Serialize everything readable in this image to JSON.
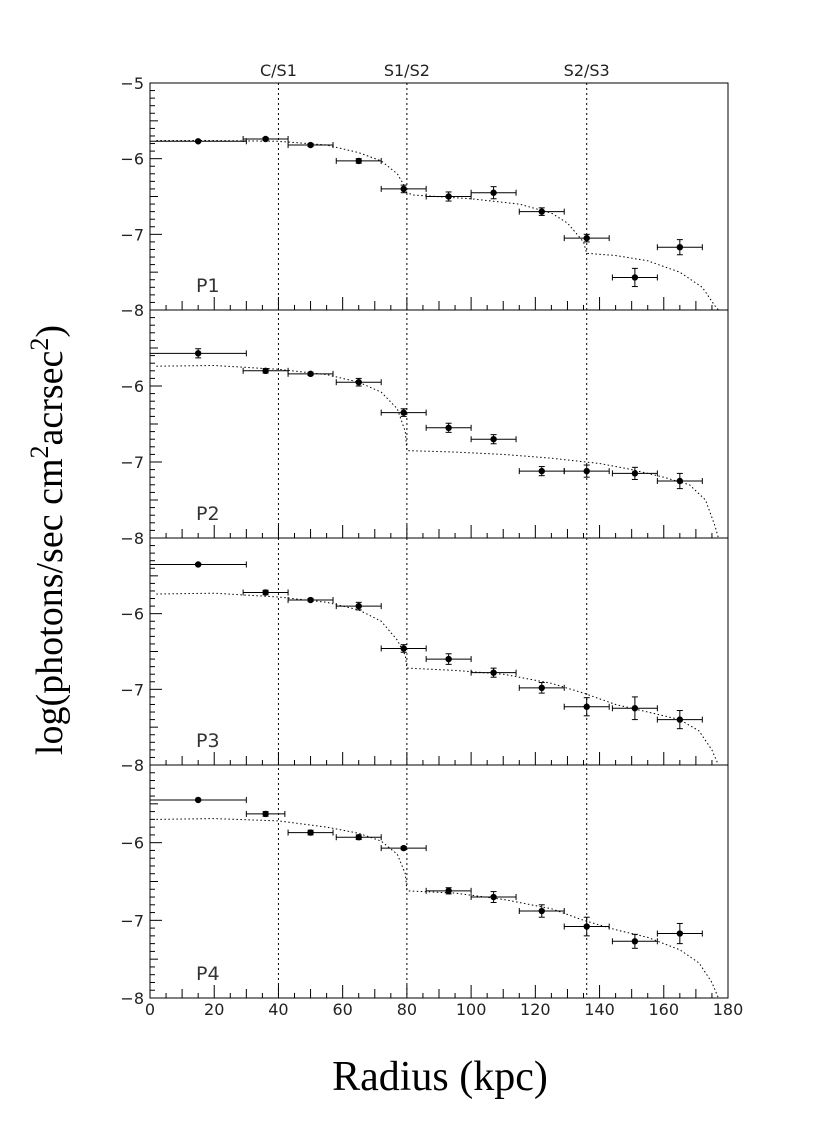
{
  "chart_data": {
    "type": "scatter",
    "xlabel": "Radius (kpc)",
    "ylabel_main": "log(photons/sec cm",
    "ylabel_sup1": "2",
    "ylabel_mid": "acrsec",
    "ylabel_sup2": "2",
    "ylabel_end": ")",
    "xlim": [
      0,
      180
    ],
    "x_ticks": [
      "0",
      "20",
      "40",
      "60",
      "80",
      "100",
      "120",
      "140",
      "160",
      "180"
    ],
    "ylim": [
      -8,
      -5
    ],
    "y_ticks_top_panel": [
      "-5",
      "-6",
      "-7",
      "-8"
    ],
    "y_ticks_other_panels": [
      "-6",
      "-7",
      "-8"
    ],
    "dividers": [
      {
        "x": 40,
        "label": "C/S1"
      },
      {
        "x": 80,
        "label": "S1/S2"
      },
      {
        "x": 136,
        "label": "S2/S3"
      }
    ],
    "panels": [
      {
        "label": "P1",
        "ylim": [
          -8,
          -5
        ],
        "points": [
          {
            "x": 15,
            "y": -5.77,
            "xerr": 15,
            "yerr": 0.01
          },
          {
            "x": 36,
            "y": -5.74,
            "xerr": 7,
            "yerr": 0.02
          },
          {
            "x": 50,
            "y": -5.82,
            "xerr": 7,
            "yerr": 0.02
          },
          {
            "x": 65,
            "y": -6.03,
            "xerr": 7,
            "yerr": 0.03
          },
          {
            "x": 79,
            "y": -6.4,
            "xerr": 7,
            "yerr": 0.05
          },
          {
            "x": 93,
            "y": -6.5,
            "xerr": 7,
            "yerr": 0.06
          },
          {
            "x": 107,
            "y": -6.45,
            "xerr": 7,
            "yerr": 0.08
          },
          {
            "x": 122,
            "y": -6.7,
            "xerr": 7,
            "yerr": 0.05
          },
          {
            "x": 136,
            "y": -7.05,
            "xerr": 7,
            "yerr": 0.05
          },
          {
            "x": 151,
            "y": -7.57,
            "xerr": 7,
            "yerr": 0.12
          },
          {
            "x": 165,
            "y": -7.17,
            "xerr": 7,
            "yerr": 0.1
          }
        ],
        "model": [
          [
            2,
            -5.76
          ],
          [
            20,
            -5.76
          ],
          [
            40,
            -5.77
          ],
          [
            55,
            -5.82
          ],
          [
            65,
            -5.92
          ],
          [
            72,
            -6.03
          ],
          [
            77,
            -6.2
          ],
          [
            79.5,
            -6.38
          ],
          [
            80,
            -6.45
          ],
          [
            82,
            -6.48
          ],
          [
            100,
            -6.53
          ],
          [
            115,
            -6.6
          ],
          [
            125,
            -6.72
          ],
          [
            130,
            -6.85
          ],
          [
            135,
            -7.1
          ],
          [
            136,
            -7.25
          ],
          [
            145,
            -7.28
          ],
          [
            155,
            -7.35
          ],
          [
            165,
            -7.5
          ],
          [
            172,
            -7.7
          ],
          [
            176,
            -7.95
          ],
          [
            177,
            -8.0
          ]
        ]
      },
      {
        "label": "P2",
        "ylim": [
          -8,
          -5
        ],
        "points": [
          {
            "x": 15,
            "y": -5.57,
            "xerr": 15,
            "yerr": 0.06
          },
          {
            "x": 36,
            "y": -5.8,
            "xerr": 7,
            "yerr": 0.03
          },
          {
            "x": 50,
            "y": -5.84,
            "xerr": 7,
            "yerr": 0.02
          },
          {
            "x": 65,
            "y": -5.95,
            "xerr": 7,
            "yerr": 0.05
          },
          {
            "x": 79,
            "y": -6.35,
            "xerr": 7,
            "yerr": 0.05
          },
          {
            "x": 93,
            "y": -6.55,
            "xerr": 7,
            "yerr": 0.06
          },
          {
            "x": 107,
            "y": -6.7,
            "xerr": 7,
            "yerr": 0.06
          },
          {
            "x": 122,
            "y": -7.12,
            "xerr": 7,
            "yerr": 0.06
          },
          {
            "x": 136,
            "y": -7.12,
            "xerr": 7,
            "yerr": 0.08
          },
          {
            "x": 151,
            "y": -7.15,
            "xerr": 7,
            "yerr": 0.08
          },
          {
            "x": 165,
            "y": -7.25,
            "xerr": 7,
            "yerr": 0.1
          }
        ],
        "model": [
          [
            2,
            -5.74
          ],
          [
            20,
            -5.73
          ],
          [
            40,
            -5.78
          ],
          [
            55,
            -5.85
          ],
          [
            65,
            -5.95
          ],
          [
            72,
            -6.08
          ],
          [
            77,
            -6.3
          ],
          [
            79.5,
            -6.6
          ],
          [
            80,
            -6.85
          ],
          [
            95,
            -6.87
          ],
          [
            110,
            -6.9
          ],
          [
            125,
            -6.95
          ],
          [
            140,
            -7.02
          ],
          [
            150,
            -7.1
          ],
          [
            160,
            -7.2
          ],
          [
            168,
            -7.3
          ],
          [
            173,
            -7.5
          ],
          [
            176,
            -7.85
          ],
          [
            177,
            -8.0
          ]
        ]
      },
      {
        "label": "P3",
        "ylim": [
          -8,
          -5
        ],
        "points": [
          {
            "x": 15,
            "y": -5.35,
            "xerr": 15,
            "yerr": 0.01
          },
          {
            "x": 36,
            "y": -5.72,
            "xerr": 7,
            "yerr": 0.03
          },
          {
            "x": 50,
            "y": -5.82,
            "xerr": 7,
            "yerr": 0.02
          },
          {
            "x": 65,
            "y": -5.9,
            "xerr": 7,
            "yerr": 0.05
          },
          {
            "x": 79,
            "y": -6.46,
            "xerr": 7,
            "yerr": 0.05
          },
          {
            "x": 93,
            "y": -6.6,
            "xerr": 7,
            "yerr": 0.07
          },
          {
            "x": 107,
            "y": -6.78,
            "xerr": 7,
            "yerr": 0.06
          },
          {
            "x": 122,
            "y": -6.98,
            "xerr": 7,
            "yerr": 0.07
          },
          {
            "x": 136,
            "y": -7.23,
            "xerr": 7,
            "yerr": 0.12
          },
          {
            "x": 151,
            "y": -7.25,
            "xerr": 7,
            "yerr": 0.15
          },
          {
            "x": 165,
            "y": -7.4,
            "xerr": 7,
            "yerr": 0.12
          }
        ],
        "model": [
          [
            2,
            -5.74
          ],
          [
            20,
            -5.73
          ],
          [
            40,
            -5.78
          ],
          [
            55,
            -5.85
          ],
          [
            65,
            -5.95
          ],
          [
            72,
            -6.1
          ],
          [
            77,
            -6.35
          ],
          [
            79.5,
            -6.55
          ],
          [
            80,
            -6.72
          ],
          [
            95,
            -6.75
          ],
          [
            110,
            -6.8
          ],
          [
            125,
            -6.92
          ],
          [
            135,
            -7.05
          ],
          [
            145,
            -7.2
          ],
          [
            155,
            -7.3
          ],
          [
            165,
            -7.4
          ],
          [
            171,
            -7.55
          ],
          [
            175,
            -7.8
          ],
          [
            177,
            -8.0
          ]
        ]
      },
      {
        "label": "P4",
        "ylim": [
          -8,
          -5
        ],
        "points": [
          {
            "x": 15,
            "y": -5.45,
            "xerr": 15,
            "yerr": 0.01
          },
          {
            "x": 36,
            "y": -5.63,
            "xerr": 6,
            "yerr": 0.03
          },
          {
            "x": 50,
            "y": -5.87,
            "xerr": 7,
            "yerr": 0.03
          },
          {
            "x": 65,
            "y": -5.93,
            "xerr": 7,
            "yerr": 0.03
          },
          {
            "x": 79,
            "y": -6.07,
            "xerr": 7,
            "yerr": 0.02
          },
          {
            "x": 93,
            "y": -6.62,
            "xerr": 7,
            "yerr": 0.04
          },
          {
            "x": 107,
            "y": -6.7,
            "xerr": 7,
            "yerr": 0.07
          },
          {
            "x": 122,
            "y": -6.88,
            "xerr": 7,
            "yerr": 0.08
          },
          {
            "x": 136,
            "y": -7.08,
            "xerr": 7,
            "yerr": 0.12
          },
          {
            "x": 151,
            "y": -7.27,
            "xerr": 7,
            "yerr": 0.09
          },
          {
            "x": 165,
            "y": -7.17,
            "xerr": 7,
            "yerr": 0.13
          }
        ],
        "model": [
          [
            2,
            -5.7
          ],
          [
            20,
            -5.69
          ],
          [
            40,
            -5.72
          ],
          [
            55,
            -5.8
          ],
          [
            65,
            -5.88
          ],
          [
            72,
            -5.98
          ],
          [
            77,
            -6.15
          ],
          [
            79.5,
            -6.4
          ],
          [
            80,
            -6.62
          ],
          [
            95,
            -6.65
          ],
          [
            110,
            -6.73
          ],
          [
            125,
            -6.85
          ],
          [
            135,
            -7.0
          ],
          [
            145,
            -7.12
          ],
          [
            155,
            -7.22
          ],
          [
            165,
            -7.38
          ],
          [
            171,
            -7.55
          ],
          [
            175,
            -7.8
          ],
          [
            177,
            -8.0
          ]
        ]
      }
    ]
  }
}
